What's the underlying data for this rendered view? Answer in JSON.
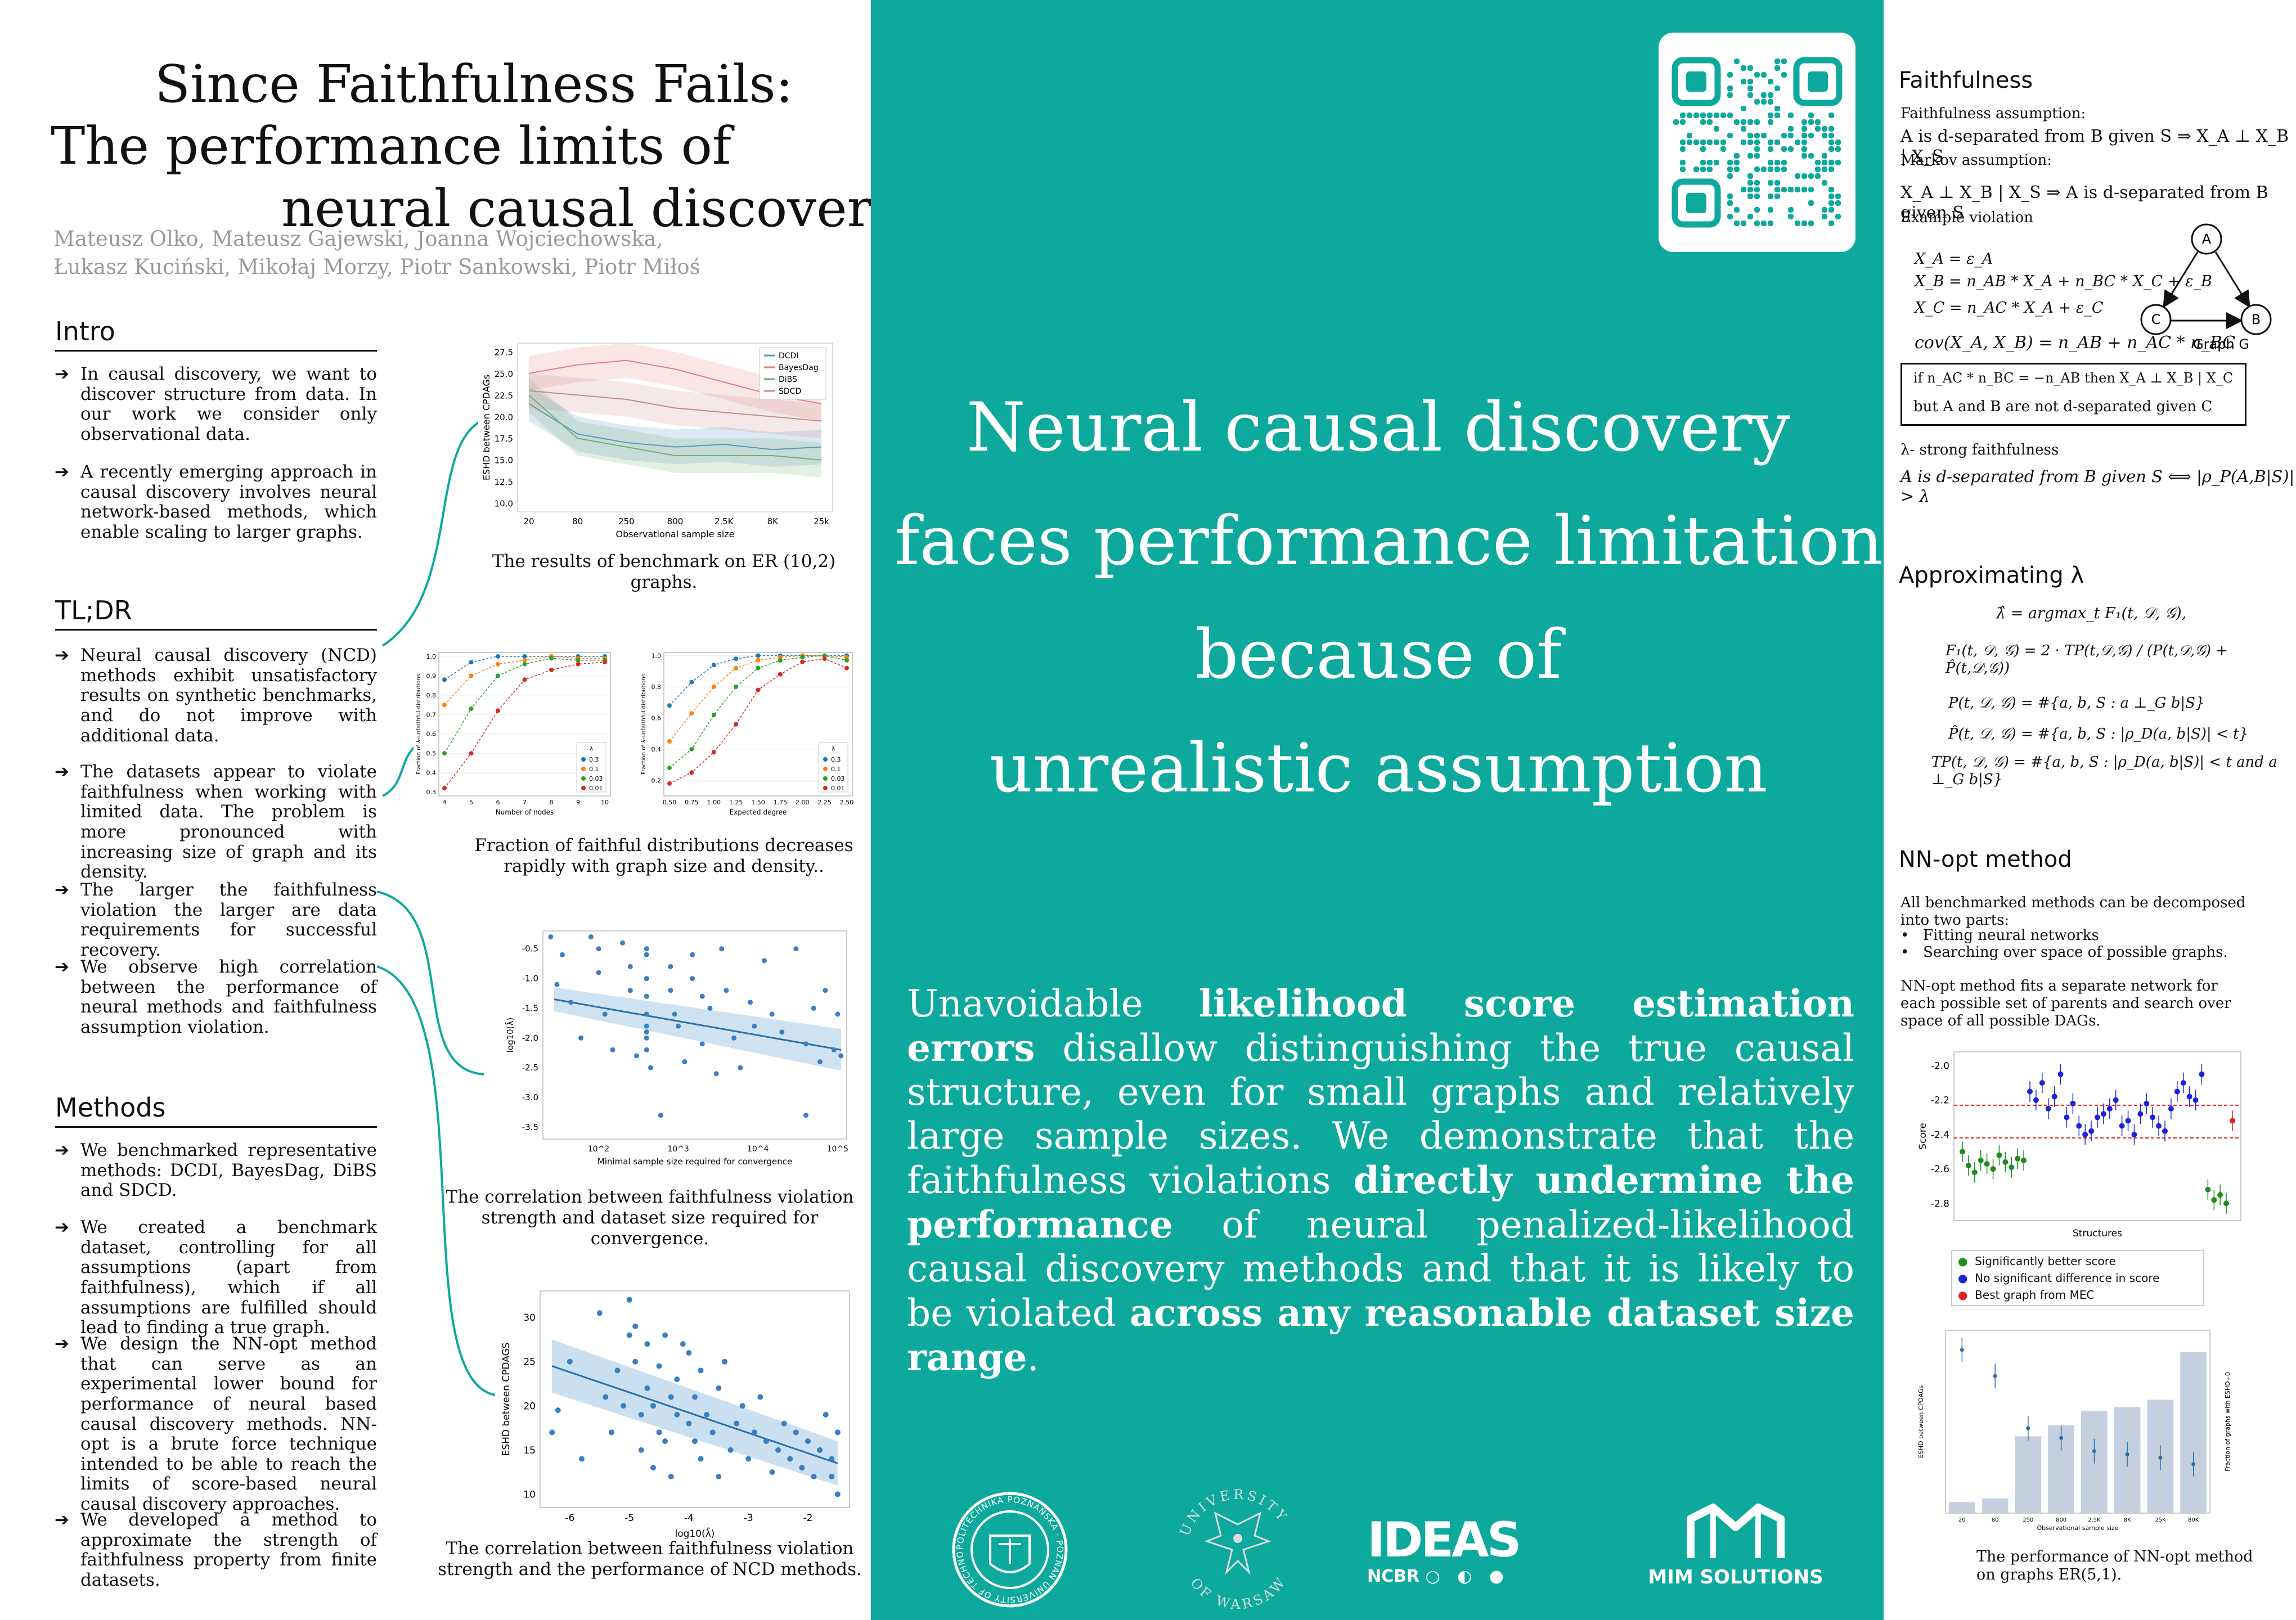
{
  "title": {
    "line1": "Since Faithfulness Fails:",
    "line2": "The performance limits of",
    "line3": "neural causal discovery"
  },
  "authors": {
    "line1": "Mateusz Olko, Mateusz Gajewski, Joanna Wojciechowska,",
    "line2": "Łukasz Kuciński, Mikołaj Morzy, Piotr Sankowski, Piotr Miłoś"
  },
  "intro": {
    "heading": "Intro",
    "bullets": [
      "In causal discovery, we want to discover structure from data. In our work we consider only observational data.",
      "A recently emerging approach in causal discovery involves neural network-based methods, which enable scaling to larger graphs."
    ]
  },
  "tldr": {
    "heading": "TL;DR",
    "bullets": [
      "Neural causal discovery (NCD) methods exhibit unsatisfactory results on synthetic benchmarks, and do not improve with additional data.",
      "The datasets appear to violate faithfulness when working with limited data. The problem is more pronounced with increasing size of graph and its density.",
      "The larger the faithfulness violation the larger are data requirements for successful recovery.",
      "We observe high correlation between the performance of neural methods and faithfulness assumption violation."
    ]
  },
  "methods": {
    "heading": "Methods",
    "bullets": [
      "We benchmarked representative methods: DCDI, BayesDag, DiBS and SDCD.",
      "We created a benchmark dataset, controlling for all assumptions (apart from faithfulness), which if all assumptions are fulfilled should lead to finding a true graph.",
      "We design the NN-opt method that can serve as an experimental lower bound for performance of neural based causal discovery methods. NN-opt is a brute force technique intended to be able to reach the limits of score-based neural causal discovery approaches.",
      "We developed a method to approximate the strength of faithfulness property from finite datasets."
    ]
  },
  "captions": {
    "benchmark": "The results of benchmark on ER (10,2) graphs.",
    "fraction_line1": "Fraction of faithful distributions decreases",
    "fraction_line2": "rapidly with graph size and  density..",
    "corr1_line1": "The correlation between faithfulness violation",
    "corr1_line2": "strength and  dataset size required for convergence.",
    "corr2_line1": "The correlation between faithfulness violation",
    "corr2_line2": "strength and the performance of NCD methods."
  },
  "chart_data": [
    {
      "type": "line",
      "xlabel": "Observational sample size",
      "ylabel": "ESHD between CPDAGs",
      "categories": [
        "20",
        "80",
        "250",
        "800",
        "2.5K",
        "8K",
        "25k"
      ],
      "yticks": [
        "10.0",
        "12.5",
        "15.0",
        "17.5",
        "20.0",
        "22.5",
        "25.0",
        "27.5"
      ],
      "ylim": [
        9,
        28.5
      ],
      "legend_position": "top-right",
      "series": [
        {
          "name": "DCDI",
          "color": "#5b8fc9",
          "values": [
            21.5,
            18.0,
            17.0,
            16.5,
            16.8,
            16.2,
            16.5
          ]
        },
        {
          "name": "BayesDag",
          "color": "#e0807c",
          "values": [
            25.0,
            26.0,
            26.5,
            25.5,
            24.0,
            22.5,
            21.5
          ]
        },
        {
          "name": "DiBS",
          "color": "#6fb06f",
          "values": [
            22.5,
            17.5,
            16.5,
            15.5,
            15.5,
            15.5,
            15.0
          ]
        },
        {
          "name": "SDCD",
          "color": "#c98a8a",
          "values": [
            23.0,
            22.5,
            22.0,
            21.0,
            20.5,
            20.0,
            19.5
          ]
        }
      ]
    },
    {
      "type": "line",
      "xlabel": "Number of nodes",
      "ylabel": "Fraction of λ-unfaithful distributions",
      "x": [
        4,
        5,
        6,
        7,
        8,
        9,
        10
      ],
      "yticks": [
        "0.3",
        "0.4",
        "0.5",
        "0.6",
        "0.7",
        "0.8",
        "0.9",
        "1.0"
      ],
      "ylim": [
        0.28,
        1.02
      ],
      "legend_title": "λ",
      "legend_position": "bottom-right",
      "series": [
        {
          "name": "0.3",
          "color": "#1f77b4",
          "values": [
            0.88,
            0.97,
            1.0,
            1.0,
            1.0,
            1.0,
            1.0
          ]
        },
        {
          "name": "0.1",
          "color": "#ff7f0e",
          "values": [
            0.75,
            0.9,
            0.96,
            0.98,
            1.0,
            0.99,
            0.99
          ]
        },
        {
          "name": "0.03",
          "color": "#2ca02c",
          "values": [
            0.5,
            0.73,
            0.9,
            0.96,
            0.99,
            0.98,
            0.98
          ]
        },
        {
          "name": "0.01",
          "color": "#d62728",
          "values": [
            0.32,
            0.5,
            0.72,
            0.88,
            0.93,
            0.96,
            0.97
          ]
        }
      ]
    },
    {
      "type": "line",
      "xlabel": "Expected degree",
      "ylabel": "Fraction of λ-unfaithful distributions",
      "x": [
        0.5,
        0.75,
        1.0,
        1.25,
        1.5,
        1.75,
        2.0,
        2.25,
        2.5
      ],
      "xticks": [
        "0.50",
        "0.75",
        "1.00",
        "1.25",
        "1.50",
        "1.75",
        "2.00",
        "2.25",
        "2.50"
      ],
      "yticks": [
        "0.2",
        "0.4",
        "0.6",
        "0.8",
        "1.0"
      ],
      "ylim": [
        0.1,
        1.02
      ],
      "legend_title": "λ",
      "legend_position": "bottom-right",
      "series": [
        {
          "name": "0.3",
          "color": "#1f77b4",
          "values": [
            0.68,
            0.83,
            0.94,
            0.98,
            1.0,
            1.0,
            1.0,
            1.0,
            1.0
          ]
        },
        {
          "name": "0.1",
          "color": "#ff7f0e",
          "values": [
            0.45,
            0.63,
            0.8,
            0.92,
            0.97,
            0.99,
            1.0,
            1.0,
            0.99
          ]
        },
        {
          "name": "0.03",
          "color": "#2ca02c",
          "values": [
            0.28,
            0.4,
            0.62,
            0.8,
            0.92,
            0.97,
            0.99,
            1.0,
            0.97
          ]
        },
        {
          "name": "0.01",
          "color": "#d62728",
          "values": [
            0.18,
            0.25,
            0.38,
            0.56,
            0.78,
            0.88,
            0.96,
            0.98,
            0.92
          ]
        }
      ]
    },
    {
      "type": "scatter",
      "xlabel": "Minimal sample size required for convergence",
      "ylabel": "log10(λ̂)",
      "xscale": "log",
      "xticks": [
        "10^2",
        "10^3",
        "10^4",
        "10^5"
      ],
      "yticks": [
        "-0.5",
        "-1.0",
        "-1.5",
        "-2.0",
        "-2.5",
        "-3.0",
        "-3.5"
      ],
      "xlim": [
        20,
        130000
      ],
      "ylim": [
        -3.7,
        -0.2
      ],
      "points": [
        [
          25,
          -0.3
        ],
        [
          30,
          -1.1
        ],
        [
          35,
          -0.6
        ],
        [
          45,
          -1.4
        ],
        [
          60,
          -2.0
        ],
        [
          80,
          -0.3
        ],
        [
          100,
          -0.5
        ],
        [
          100,
          -0.9
        ],
        [
          120,
          -1.6
        ],
        [
          150,
          -2.2
        ],
        [
          200,
          -0.4
        ],
        [
          250,
          -0.8
        ],
        [
          250,
          -1.2
        ],
        [
          300,
          -2.3
        ],
        [
          400,
          -0.5
        ],
        [
          400,
          -0.6
        ],
        [
          400,
          -1.0
        ],
        [
          400,
          -1.3
        ],
        [
          400,
          -1.6
        ],
        [
          400,
          -1.8
        ],
        [
          400,
          -1.9
        ],
        [
          400,
          -2.0
        ],
        [
          400,
          -2.2
        ],
        [
          450,
          -2.5
        ],
        [
          600,
          -3.3
        ],
        [
          800,
          -0.8
        ],
        [
          800,
          -1.2
        ],
        [
          900,
          -1.6
        ],
        [
          1000,
          -1.8
        ],
        [
          1200,
          -2.4
        ],
        [
          1500,
          -0.6
        ],
        [
          1500,
          -1.0
        ],
        [
          2000,
          -1.3
        ],
        [
          2000,
          -2.1
        ],
        [
          2500,
          -1.5
        ],
        [
          3000,
          -2.6
        ],
        [
          3500,
          -0.5
        ],
        [
          4000,
          -1.2
        ],
        [
          5000,
          -2.0
        ],
        [
          6000,
          -2.5
        ],
        [
          8000,
          -1.4
        ],
        [
          9000,
          -1.8
        ],
        [
          12000,
          -0.7
        ],
        [
          15000,
          -1.6
        ],
        [
          20000,
          -1.9
        ],
        [
          30000,
          -0.5
        ],
        [
          40000,
          -2.1
        ],
        [
          40000,
          -3.3
        ],
        [
          50000,
          -1.5
        ],
        [
          60000,
          -2.4
        ],
        [
          70000,
          -1.2
        ],
        [
          90000,
          -2.2
        ],
        [
          100000,
          -1.6
        ],
        [
          110000,
          -2.3
        ]
      ],
      "trend": {
        "y_at_xmin": -1.35,
        "y_at_xmax": -2.2
      }
    },
    {
      "type": "scatter",
      "xlabel": "log10(λ̂)",
      "ylabel": "ESHD between CPDAGS",
      "xticks": [
        "-6",
        "-5",
        "-4",
        "-3",
        "-2"
      ],
      "yticks": [
        "10",
        "15",
        "20",
        "25",
        "30"
      ],
      "xlim": [
        -6.5,
        -1.3
      ],
      "ylim": [
        8.5,
        33
      ],
      "points": [
        [
          -6.3,
          17
        ],
        [
          -6.2,
          19.5
        ],
        [
          -6.0,
          25
        ],
        [
          -5.8,
          14
        ],
        [
          -5.5,
          30.5
        ],
        [
          -5.4,
          21
        ],
        [
          -5.3,
          17
        ],
        [
          -5.2,
          24
        ],
        [
          -5.1,
          20
        ],
        [
          -5.0,
          32
        ],
        [
          -5.0,
          28
        ],
        [
          -4.9,
          29
        ],
        [
          -4.9,
          25
        ],
        [
          -4.8,
          19
        ],
        [
          -4.8,
          15
        ],
        [
          -4.7,
          22
        ],
        [
          -4.7,
          27
        ],
        [
          -4.6,
          13
        ],
        [
          -4.6,
          20
        ],
        [
          -4.5,
          17
        ],
        [
          -4.5,
          24.5
        ],
        [
          -4.4,
          28
        ],
        [
          -4.4,
          16
        ],
        [
          -4.3,
          21
        ],
        [
          -4.3,
          12
        ],
        [
          -4.2,
          19
        ],
        [
          -4.2,
          23
        ],
        [
          -4.1,
          27
        ],
        [
          -4.0,
          18
        ],
        [
          -4.0,
          26
        ],
        [
          -3.9,
          16
        ],
        [
          -3.9,
          21
        ],
        [
          -3.8,
          14
        ],
        [
          -3.8,
          24
        ],
        [
          -3.7,
          19
        ],
        [
          -3.6,
          17
        ],
        [
          -3.5,
          22
        ],
        [
          -3.5,
          12
        ],
        [
          -3.4,
          25
        ],
        [
          -3.3,
          15
        ],
        [
          -3.2,
          18
        ],
        [
          -3.1,
          20
        ],
        [
          -3.0,
          14
        ],
        [
          -2.9,
          17
        ],
        [
          -2.8,
          21
        ],
        [
          -2.7,
          16
        ],
        [
          -2.6,
          12.5
        ],
        [
          -2.5,
          15
        ],
        [
          -2.4,
          18
        ],
        [
          -2.3,
          14
        ],
        [
          -2.2,
          17
        ],
        [
          -2.1,
          13
        ],
        [
          -2.0,
          16
        ],
        [
          -1.9,
          12
        ],
        [
          -1.8,
          15
        ],
        [
          -1.7,
          19
        ],
        [
          -1.6,
          14
        ],
        [
          -1.6,
          12
        ],
        [
          -1.5,
          17
        ],
        [
          -1.5,
          10
        ]
      ],
      "trend": {
        "x1": -6.3,
        "y1": 24.5,
        "x2": -1.5,
        "y2": 13.5
      }
    },
    {
      "type": "scatter",
      "xlabel": "Structures",
      "ylabel": "Score",
      "yticks": [
        "-2.0",
        "-2.2",
        "-2.4",
        "-2.6",
        "-2.8"
      ],
      "ylim": [
        -2.9,
        -1.92
      ],
      "legend_position": "below",
      "legend": [
        {
          "name": "Significantly better score",
          "color": "#1e8c1e"
        },
        {
          "name": "No significant difference in score",
          "color": "#1d24d6"
        },
        {
          "name": "Best graph from MEC",
          "color": "#e02020"
        }
      ],
      "green": [
        -2.5,
        -2.58,
        -2.62,
        -2.55,
        -2.57,
        -2.6,
        -2.52,
        -2.56,
        -2.59,
        -2.54,
        -2.55,
        -2.72,
        -2.78,
        -2.75,
        -2.8
      ],
      "blue": [
        -2.15,
        -2.2,
        -2.1,
        -2.25,
        -2.18,
        -2.05,
        -2.3,
        -2.22,
        -2.35,
        -2.4,
        -2.38,
        -2.3,
        -2.28,
        -2.25,
        -2.2,
        -2.35,
        -2.32,
        -2.4,
        -2.28,
        -2.22,
        -2.3,
        -2.35,
        -2.38,
        -2.25,
        -2.15,
        -2.1,
        -2.18,
        -2.2,
        -2.05
      ],
      "red": [
        -2.32
      ],
      "hlines": [
        -2.23,
        -2.42
      ]
    },
    {
      "type": "bar",
      "xlabel": "Observational sample size",
      "ylabel": "ESHD between CPDAGs",
      "y2label": "Fraction of graphs with ESHD=0",
      "categories": [
        "20",
        "80",
        "250",
        "800",
        "2.5K",
        "8K",
        "25K",
        "80K"
      ],
      "bars": [
        0.06,
        0.08,
        0.42,
        0.48,
        0.56,
        0.58,
        0.62,
        0.88
      ],
      "points": [
        5.0,
        4.2,
        2.6,
        2.3,
        1.9,
        1.8,
        1.7,
        1.5
      ]
    }
  ],
  "main": {
    "headline": [
      "Neural causal discovery",
      "faces performance limitations",
      "because of",
      "unrealistic assumption"
    ],
    "body_parts": [
      "Unavoidable ",
      "likelihood score estimation errors",
      " disallow distinguishing the true causal structure, even for small graphs and relatively large sample sizes. We demonstrate that the faithfulness violations ",
      "directly undermine the performance",
      " of neural penalized-likelihood causal discovery methods and that it is likely to be violated ",
      "across any reasonable dataset size range",
      "."
    ]
  },
  "logos": {
    "pp": "POLITECHNIKA POZNAŃSKA · POZNAN UNIVERSITY OF TECHNOLOGY",
    "uw1": "UNIVERSITY",
    "uw2": "OF WARSAW",
    "ideas": "IDEAS",
    "ncbr": "NCBR",
    "mim": "MIM SOLUTIONS"
  },
  "right": {
    "faith_heading": "Faithfulness",
    "faith_assumption": "Faithfulness assumption:",
    "faith_stmt": "A is d-separated from B given S ⇒ X_A ⊥ X_B | X_S",
    "markov_assumption": "Markov assumption:",
    "markov_stmt": "X_A ⊥ X_B | X_S ⇒ A is d-separated from B given S",
    "example": "Example violation",
    "eq1": "X_A = ε_A",
    "eq2": "X_B = n_AB * X_A + n_BC * X_C + ε_B",
    "eq3": "X_C = n_AC * X_A + ε_C",
    "eq4": "cov(X_A, X_B) = n_AB + n_AC * n_BC",
    "box1": "if n_AC * n_BC = −n_AB then X_A ⊥ X_B | X_C",
    "box2": "but A and B are not d-separated given C",
    "graph_label": "Graph G",
    "node_a": "A",
    "node_b": "B",
    "node_c": "C",
    "strong_label": "λ- strong faithfulness",
    "strong_stmt": "A is d-separated from B given S ⟺ |ρ_P(A,B|S)| > λ",
    "approx_heading": "Approximating λ",
    "f1": "λ̂ = argmax_t F₁(t, 𝒟, 𝒢),",
    "f2": "F₁(t, 𝒟, 𝒢) = 2 · TP(t,𝒟,𝒢) / (P(t,𝒟,𝒢) + P̂(t,𝒟,𝒢))",
    "f3": "P(t, 𝒟, 𝒢) = #{a, b, S : a ⊥_G b|S}",
    "f4": "P̂(t, 𝒟, 𝒢) = #{a, b, S : |ρ_D(a, b|S)| < t}",
    "f5": "TP(t, 𝒟, 𝒢) = #{a, b, S : |ρ_D(a, b|S)| < t and a ⊥_G b|S}",
    "nn_heading": "NN-opt method",
    "nn_p1": "All benchmarked methods can be decomposed into two parts:",
    "nn_b1": "Fitting neural networks",
    "nn_b2": "Searching over space of possible graphs.",
    "nn_p2": "NN-opt method fits a separate network for each possible set of parents and search over space of all possible DAGs.",
    "nn_caption_1": "The performance of NN-opt method",
    "nn_caption_2": "on graphs ER(5,1)."
  }
}
